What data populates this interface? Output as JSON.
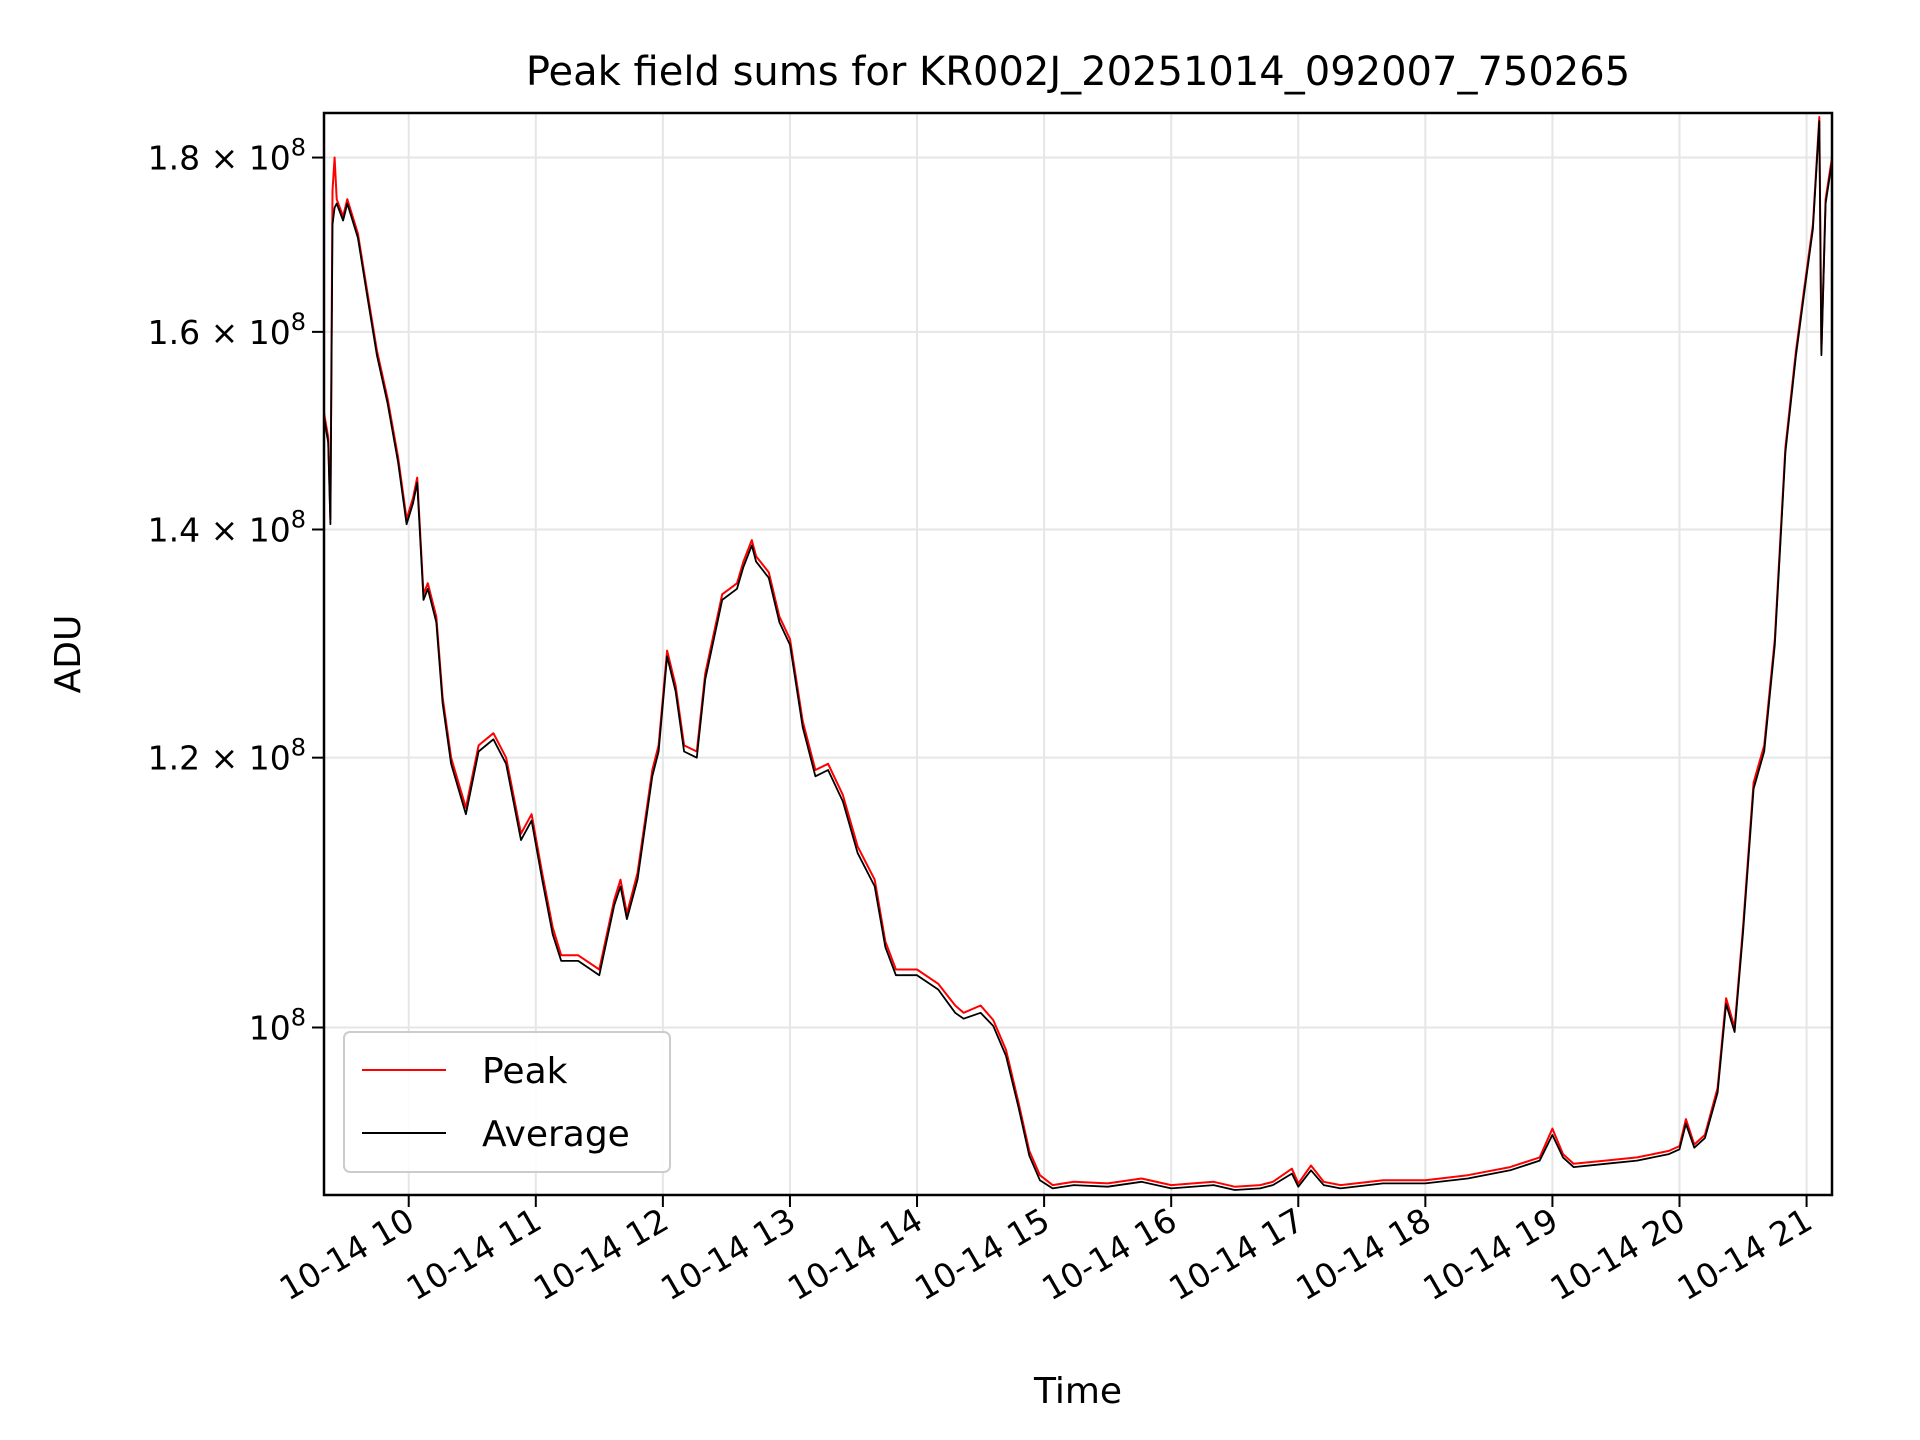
{
  "chart_data": {
    "type": "line",
    "title": "Peak field sums for KR002J_20251014_092007_750265",
    "xlabel": "Time",
    "ylabel": "ADU",
    "x_scale": "time",
    "y_scale": "log",
    "xlim": [
      "2025-10-14T09:20",
      "2025-10-14T21:12"
    ],
    "ylim": [
      89300000,
      185500000
    ],
    "grid": true,
    "legend_position": "lower-left",
    "x_ticks": [
      {
        "t": "2025-10-14T10:00",
        "label": "10-14 10"
      },
      {
        "t": "2025-10-14T11:00",
        "label": "10-14 11"
      },
      {
        "t": "2025-10-14T12:00",
        "label": "10-14 12"
      },
      {
        "t": "2025-10-14T13:00",
        "label": "10-14 13"
      },
      {
        "t": "2025-10-14T14:00",
        "label": "10-14 14"
      },
      {
        "t": "2025-10-14T15:00",
        "label": "10-14 15"
      },
      {
        "t": "2025-10-14T16:00",
        "label": "10-14 16"
      },
      {
        "t": "2025-10-14T17:00",
        "label": "10-14 17"
      },
      {
        "t": "2025-10-14T18:00",
        "label": "10-14 18"
      },
      {
        "t": "2025-10-14T19:00",
        "label": "10-14 19"
      },
      {
        "t": "2025-10-14T20:00",
        "label": "10-14 20"
      },
      {
        "t": "2025-10-14T21:00",
        "label": "10-14 21"
      }
    ],
    "y_ticks": [
      {
        "v": 100000000,
        "base": "10",
        "exp": "8"
      },
      {
        "v": 120000000,
        "base": "1.2 × 10",
        "exp": "8"
      },
      {
        "v": 140000000,
        "base": "1.4 × 10",
        "exp": "8"
      },
      {
        "v": 160000000,
        "base": "1.6 × 10",
        "exp": "8"
      },
      {
        "v": 180000000,
        "base": "1.8 × 10",
        "exp": "8"
      }
    ],
    "series": [
      {
        "name": "Peak",
        "color": "#ff0000",
        "points": [
          [
            "2025-10-14T09:20",
            151500000
          ],
          [
            "2025-10-14T09:22",
            149000000
          ],
          [
            "2025-10-14T09:23",
            141000000
          ],
          [
            "2025-10-14T09:24",
            176000000
          ],
          [
            "2025-10-14T09:25",
            180000000
          ],
          [
            "2025-10-14T09:26",
            175000000
          ],
          [
            "2025-10-14T09:29",
            173000000
          ],
          [
            "2025-10-14T09:31",
            175000000
          ],
          [
            "2025-10-14T09:36",
            171000000
          ],
          [
            "2025-10-14T09:40",
            165000000
          ],
          [
            "2025-10-14T09:45",
            158000000
          ],
          [
            "2025-10-14T09:50",
            153000000
          ],
          [
            "2025-10-14T09:55",
            147000000
          ],
          [
            "2025-10-14T09:59",
            141000000
          ],
          [
            "2025-10-14T10:02",
            143000000
          ],
          [
            "2025-10-14T10:04",
            145000000
          ],
          [
            "2025-10-14T10:07",
            134000000
          ],
          [
            "2025-10-14T10:09",
            135000000
          ],
          [
            "2025-10-14T10:13",
            132000000
          ],
          [
            "2025-10-14T10:16",
            125000000
          ],
          [
            "2025-10-14T10:20",
            120000000
          ],
          [
            "2025-10-14T10:27",
            116000000
          ],
          [
            "2025-10-14T10:33",
            121000000
          ],
          [
            "2025-10-14T10:40",
            122000000
          ],
          [
            "2025-10-14T10:46",
            120000000
          ],
          [
            "2025-10-14T10:53",
            114000000
          ],
          [
            "2025-10-14T10:58",
            115500000
          ],
          [
            "2025-10-14T11:03",
            111000000
          ],
          [
            "2025-10-14T11:08",
            107000000
          ],
          [
            "2025-10-14T11:12",
            105000000
          ],
          [
            "2025-10-14T11:20",
            105000000
          ],
          [
            "2025-10-14T11:30",
            104000000
          ],
          [
            "2025-10-14T11:37",
            109000000
          ],
          [
            "2025-10-14T11:40",
            110500000
          ],
          [
            "2025-10-14T11:43",
            108000000
          ],
          [
            "2025-10-14T11:48",
            111000000
          ],
          [
            "2025-10-14T11:55",
            119000000
          ],
          [
            "2025-10-14T11:58",
            121000000
          ],
          [
            "2025-10-14T12:02",
            129000000
          ],
          [
            "2025-10-14T12:06",
            126000000
          ],
          [
            "2025-10-14T12:10",
            121000000
          ],
          [
            "2025-10-14T12:16",
            120500000
          ],
          [
            "2025-10-14T12:20",
            127000000
          ],
          [
            "2025-10-14T12:28",
            134000000
          ],
          [
            "2025-10-14T12:35",
            135000000
          ],
          [
            "2025-10-14T12:38",
            137000000
          ],
          [
            "2025-10-14T12:42",
            139000000
          ],
          [
            "2025-10-14T12:44",
            137500000
          ],
          [
            "2025-10-14T12:50",
            136000000
          ],
          [
            "2025-10-14T12:55",
            132000000
          ],
          [
            "2025-10-14T13:00",
            130000000
          ],
          [
            "2025-10-14T13:06",
            123000000
          ],
          [
            "2025-10-14T13:12",
            119000000
          ],
          [
            "2025-10-14T13:18",
            119500000
          ],
          [
            "2025-10-14T13:25",
            117000000
          ],
          [
            "2025-10-14T13:32",
            113000000
          ],
          [
            "2025-10-14T13:40",
            110500000
          ],
          [
            "2025-10-14T13:45",
            106000000
          ],
          [
            "2025-10-14T13:50",
            104000000
          ],
          [
            "2025-10-14T14:00",
            104000000
          ],
          [
            "2025-10-14T14:10",
            103000000
          ],
          [
            "2025-10-14T14:18",
            101500000
          ],
          [
            "2025-10-14T14:22",
            101000000
          ],
          [
            "2025-10-14T14:30",
            101500000
          ],
          [
            "2025-10-14T14:36",
            100500000
          ],
          [
            "2025-10-14T14:42",
            98500000
          ],
          [
            "2025-10-14T14:48",
            95000000
          ],
          [
            "2025-10-14T14:53",
            92000000
          ],
          [
            "2025-10-14T14:58",
            90500000
          ],
          [
            "2025-10-14T15:04",
            89900000
          ],
          [
            "2025-10-14T15:14",
            90100000
          ],
          [
            "2025-10-14T15:30",
            90000000
          ],
          [
            "2025-10-14T15:46",
            90300000
          ],
          [
            "2025-10-14T16:00",
            89900000
          ],
          [
            "2025-10-14T16:20",
            90100000
          ],
          [
            "2025-10-14T16:30",
            89800000
          ],
          [
            "2025-10-14T16:42",
            89900000
          ],
          [
            "2025-10-14T16:48",
            90100000
          ],
          [
            "2025-10-14T16:57",
            90900000
          ],
          [
            "2025-10-14T17:00",
            90000000
          ],
          [
            "2025-10-14T17:06",
            91100000
          ],
          [
            "2025-10-14T17:12",
            90100000
          ],
          [
            "2025-10-14T17:20",
            89900000
          ],
          [
            "2025-10-14T17:40",
            90200000
          ],
          [
            "2025-10-14T18:00",
            90200000
          ],
          [
            "2025-10-14T18:20",
            90500000
          ],
          [
            "2025-10-14T18:40",
            91000000
          ],
          [
            "2025-10-14T18:54",
            91600000
          ],
          [
            "2025-10-14T19:00",
            93400000
          ],
          [
            "2025-10-14T19:05",
            91800000
          ],
          [
            "2025-10-14T19:10",
            91200000
          ],
          [
            "2025-10-14T19:25",
            91400000
          ],
          [
            "2025-10-14T19:40",
            91600000
          ],
          [
            "2025-10-14T19:55",
            92000000
          ],
          [
            "2025-10-14T20:00",
            92300000
          ],
          [
            "2025-10-14T20:03",
            94000000
          ],
          [
            "2025-10-14T20:07",
            92400000
          ],
          [
            "2025-10-14T20:12",
            93000000
          ],
          [
            "2025-10-14T20:18",
            96000000
          ],
          [
            "2025-10-14T20:22",
            102000000
          ],
          [
            "2025-10-14T20:26",
            100000000
          ],
          [
            "2025-10-14T20:30",
            107000000
          ],
          [
            "2025-10-14T20:35",
            118000000
          ],
          [
            "2025-10-14T20:40",
            121000000
          ],
          [
            "2025-10-14T20:45",
            130000000
          ],
          [
            "2025-10-14T20:50",
            148000000
          ],
          [
            "2025-10-14T20:55",
            158000000
          ],
          [
            "2025-10-14T20:59",
            165000000
          ],
          [
            "2025-10-14T21:03",
            172000000
          ],
          [
            "2025-10-14T21:06",
            185000000
          ],
          [
            "2025-10-14T21:07",
            158000000
          ],
          [
            "2025-10-14T21:09",
            175000000
          ],
          [
            "2025-10-14T21:12",
            180000000
          ]
        ]
      },
      {
        "name": "Average",
        "color": "#000000",
        "points": [
          [
            "2025-10-14T09:20",
            151000000
          ],
          [
            "2025-10-14T09:22",
            148500000
          ],
          [
            "2025-10-14T09:23",
            140500000
          ],
          [
            "2025-10-14T09:24",
            172000000
          ],
          [
            "2025-10-14T09:25",
            174000000
          ],
          [
            "2025-10-14T09:26",
            174500000
          ],
          [
            "2025-10-14T09:29",
            172500000
          ],
          [
            "2025-10-14T09:31",
            174500000
          ],
          [
            "2025-10-14T09:36",
            170500000
          ],
          [
            "2025-10-14T09:40",
            164500000
          ],
          [
            "2025-10-14T09:45",
            157500000
          ],
          [
            "2025-10-14T09:50",
            152500000
          ],
          [
            "2025-10-14T09:55",
            146500000
          ],
          [
            "2025-10-14T09:59",
            140500000
          ],
          [
            "2025-10-14T10:02",
            142500000
          ],
          [
            "2025-10-14T10:04",
            144500000
          ],
          [
            "2025-10-14T10:07",
            133500000
          ],
          [
            "2025-10-14T10:09",
            134500000
          ],
          [
            "2025-10-14T10:13",
            131500000
          ],
          [
            "2025-10-14T10:16",
            124500000
          ],
          [
            "2025-10-14T10:20",
            119500000
          ],
          [
            "2025-10-14T10:27",
            115500000
          ],
          [
            "2025-10-14T10:33",
            120500000
          ],
          [
            "2025-10-14T10:40",
            121500000
          ],
          [
            "2025-10-14T10:46",
            119500000
          ],
          [
            "2025-10-14T10:53",
            113500000
          ],
          [
            "2025-10-14T10:58",
            115000000
          ],
          [
            "2025-10-14T11:03",
            110500000
          ],
          [
            "2025-10-14T11:08",
            106500000
          ],
          [
            "2025-10-14T11:12",
            104600000
          ],
          [
            "2025-10-14T11:20",
            104600000
          ],
          [
            "2025-10-14T11:30",
            103600000
          ],
          [
            "2025-10-14T11:37",
            108600000
          ],
          [
            "2025-10-14T11:40",
            110000000
          ],
          [
            "2025-10-14T11:43",
            107600000
          ],
          [
            "2025-10-14T11:48",
            110500000
          ],
          [
            "2025-10-14T11:55",
            118500000
          ],
          [
            "2025-10-14T11:58",
            120500000
          ],
          [
            "2025-10-14T12:02",
            128500000
          ],
          [
            "2025-10-14T12:06",
            125500000
          ],
          [
            "2025-10-14T12:10",
            120500000
          ],
          [
            "2025-10-14T12:16",
            120000000
          ],
          [
            "2025-10-14T12:20",
            126500000
          ],
          [
            "2025-10-14T12:28",
            133500000
          ],
          [
            "2025-10-14T12:35",
            134500000
          ],
          [
            "2025-10-14T12:38",
            136500000
          ],
          [
            "2025-10-14T12:42",
            138500000
          ],
          [
            "2025-10-14T12:44",
            137000000
          ],
          [
            "2025-10-14T12:50",
            135500000
          ],
          [
            "2025-10-14T12:55",
            131500000
          ],
          [
            "2025-10-14T13:00",
            129500000
          ],
          [
            "2025-10-14T13:06",
            122500000
          ],
          [
            "2025-10-14T13:12",
            118500000
          ],
          [
            "2025-10-14T13:18",
            119000000
          ],
          [
            "2025-10-14T13:25",
            116500000
          ],
          [
            "2025-10-14T13:32",
            112500000
          ],
          [
            "2025-10-14T13:40",
            110000000
          ],
          [
            "2025-10-14T13:45",
            105600000
          ],
          [
            "2025-10-14T13:50",
            103600000
          ],
          [
            "2025-10-14T14:00",
            103600000
          ],
          [
            "2025-10-14T14:10",
            102600000
          ],
          [
            "2025-10-14T14:18",
            101000000
          ],
          [
            "2025-10-14T14:22",
            100600000
          ],
          [
            "2025-10-14T14:30",
            101000000
          ],
          [
            "2025-10-14T14:36",
            100100000
          ],
          [
            "2025-10-14T14:42",
            98100000
          ],
          [
            "2025-10-14T14:48",
            94700000
          ],
          [
            "2025-10-14T14:53",
            91700000
          ],
          [
            "2025-10-14T14:58",
            90200000
          ],
          [
            "2025-10-14T15:04",
            89700000
          ],
          [
            "2025-10-14T15:14",
            89900000
          ],
          [
            "2025-10-14T15:30",
            89800000
          ],
          [
            "2025-10-14T15:46",
            90100000
          ],
          [
            "2025-10-14T16:00",
            89700000
          ],
          [
            "2025-10-14T16:20",
            89900000
          ],
          [
            "2025-10-14T16:30",
            89600000
          ],
          [
            "2025-10-14T16:42",
            89700000
          ],
          [
            "2025-10-14T16:48",
            89900000
          ],
          [
            "2025-10-14T16:57",
            90600000
          ],
          [
            "2025-10-14T17:00",
            89800000
          ],
          [
            "2025-10-14T17:06",
            90800000
          ],
          [
            "2025-10-14T17:12",
            89900000
          ],
          [
            "2025-10-14T17:20",
            89700000
          ],
          [
            "2025-10-14T17:40",
            90000000
          ],
          [
            "2025-10-14T18:00",
            90000000
          ],
          [
            "2025-10-14T18:20",
            90300000
          ],
          [
            "2025-10-14T18:40",
            90800000
          ],
          [
            "2025-10-14T18:54",
            91400000
          ],
          [
            "2025-10-14T19:00",
            93000000
          ],
          [
            "2025-10-14T19:05",
            91600000
          ],
          [
            "2025-10-14T19:10",
            91000000
          ],
          [
            "2025-10-14T19:25",
            91200000
          ],
          [
            "2025-10-14T19:40",
            91400000
          ],
          [
            "2025-10-14T19:55",
            91800000
          ],
          [
            "2025-10-14T20:00",
            92100000
          ],
          [
            "2025-10-14T20:03",
            93700000
          ],
          [
            "2025-10-14T20:07",
            92200000
          ],
          [
            "2025-10-14T20:12",
            92800000
          ],
          [
            "2025-10-14T20:18",
            95700000
          ],
          [
            "2025-10-14T20:22",
            101600000
          ],
          [
            "2025-10-14T20:26",
            99700000
          ],
          [
            "2025-10-14T20:30",
            106600000
          ],
          [
            "2025-10-14T20:35",
            117500000
          ],
          [
            "2025-10-14T20:40",
            120500000
          ],
          [
            "2025-10-14T20:45",
            129500000
          ],
          [
            "2025-10-14T20:50",
            147500000
          ],
          [
            "2025-10-14T20:55",
            157500000
          ],
          [
            "2025-10-14T20:59",
            164500000
          ],
          [
            "2025-10-14T21:03",
            171500000
          ],
          [
            "2025-10-14T21:06",
            184500000
          ],
          [
            "2025-10-14T21:07",
            157500000
          ],
          [
            "2025-10-14T21:09",
            174500000
          ],
          [
            "2025-10-14T21:12",
            179500000
          ]
        ]
      }
    ]
  }
}
